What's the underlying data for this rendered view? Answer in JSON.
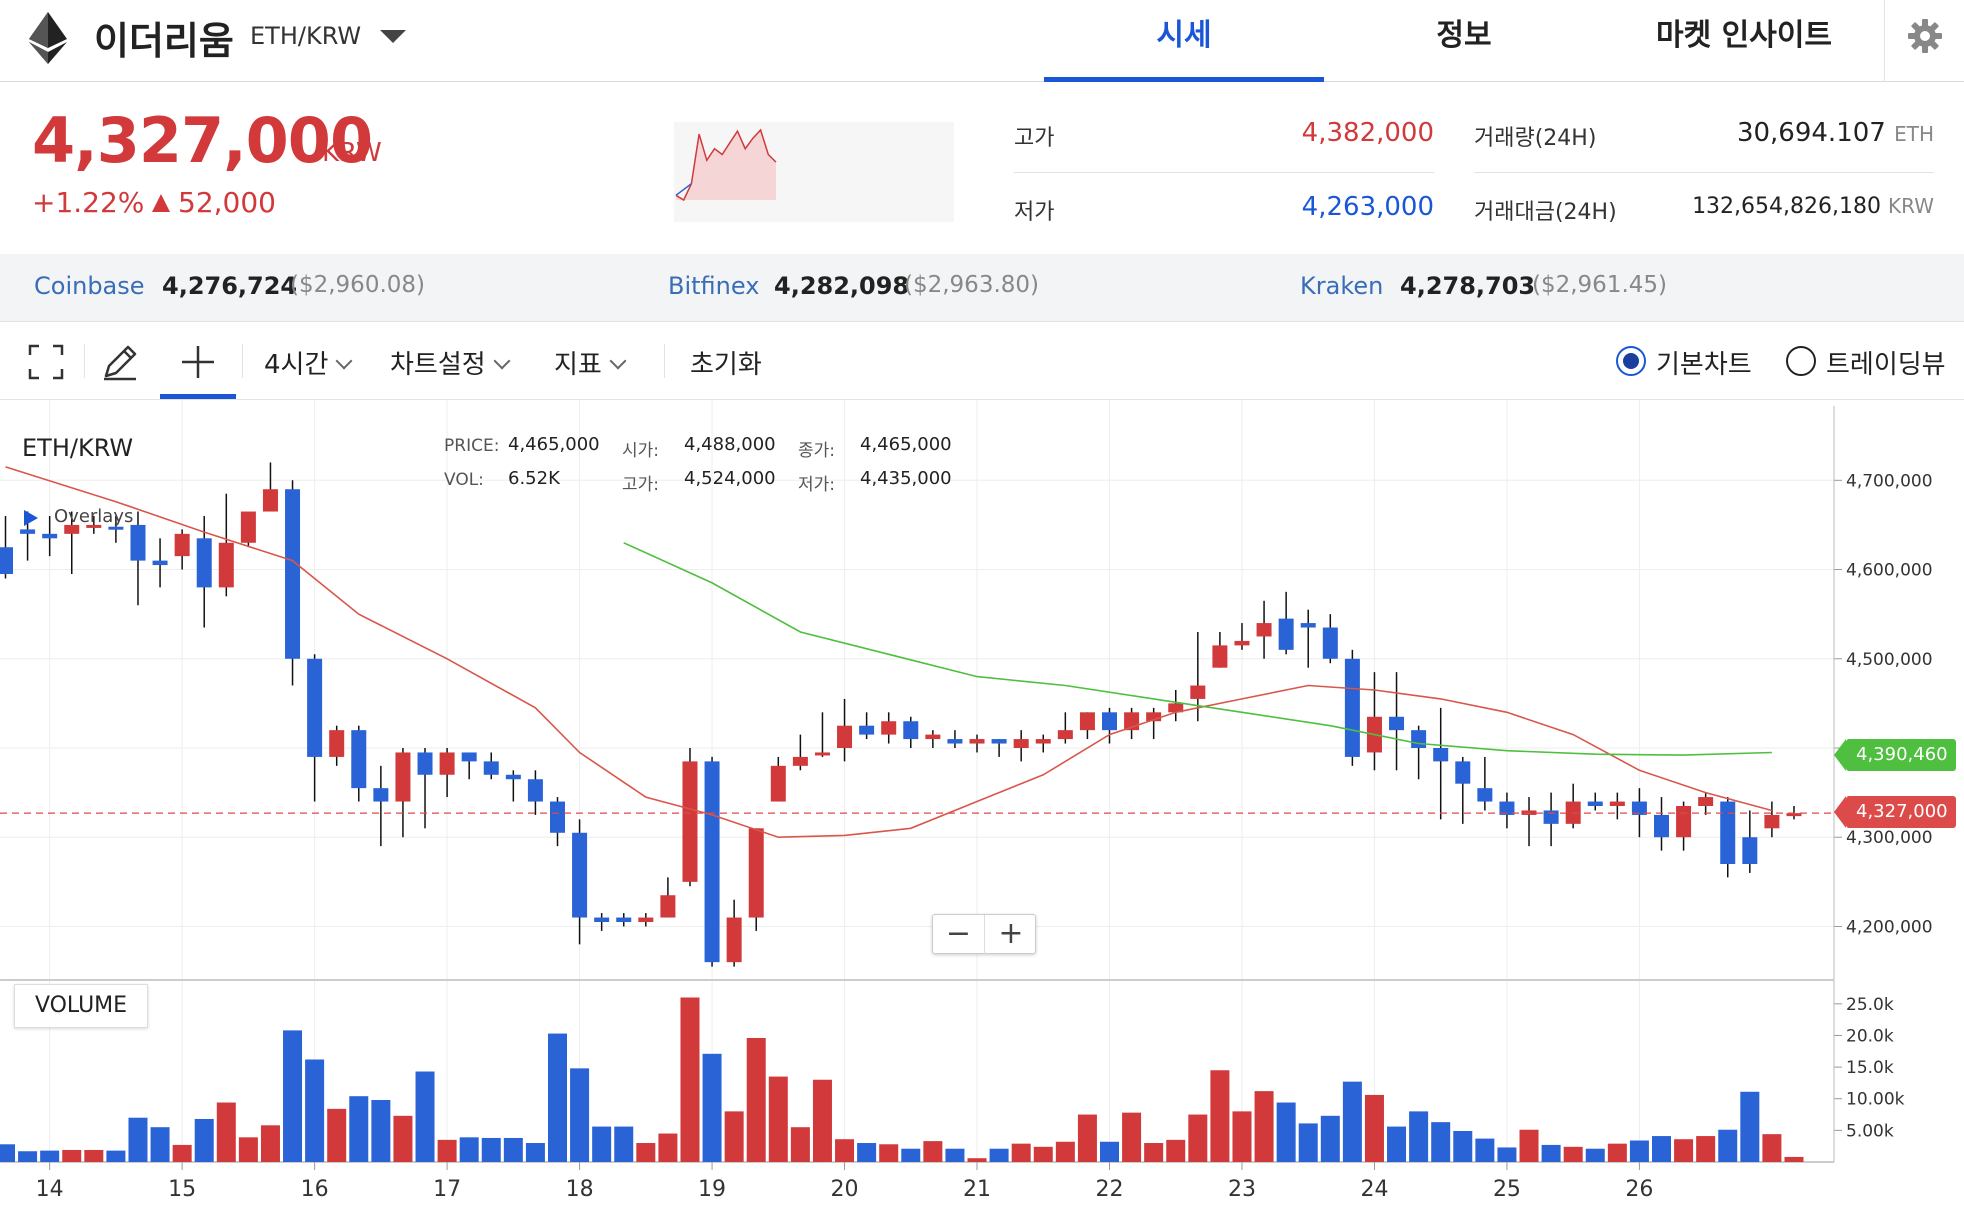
{
  "header": {
    "coin_name": "이더리움",
    "pair": "ETH/KRW",
    "tabs": [
      {
        "label": "시세",
        "active": true
      },
      {
        "label": "정보",
        "active": false
      },
      {
        "label": "마켓 인사이트",
        "active": false
      }
    ],
    "icons": {
      "logo": "ethereum-logo",
      "dropdown": "caret-down-icon",
      "settings": "gear-icon"
    }
  },
  "price": {
    "value": "4,327,000",
    "unit": "KRW",
    "change_pct": "+1.22%",
    "change_amt": "52,000",
    "sparkline": [
      4270,
      4262,
      4290,
      4375,
      4330,
      4350,
      4340,
      4360,
      4380,
      4350,
      4368,
      4382,
      4340,
      4327
    ]
  },
  "stats": {
    "high_label": "고가",
    "high": "4,382,000",
    "low_label": "저가",
    "low": "4,263,000",
    "volume_label": "거래량(24H)",
    "volume": "30,694.107",
    "volume_unit": "ETH",
    "value_label": "거래대금(24H)",
    "value": "132,654,826,180",
    "value_unit": "KRW"
  },
  "exchanges": [
    {
      "name": "Coinbase",
      "price": "4,276,724",
      "usd": "($2,960.08)"
    },
    {
      "name": "Bitfinex",
      "price": "4,282,098",
      "usd": "($2,963.80)"
    },
    {
      "name": "Kraken",
      "price": "4,278,703",
      "usd": "($2,961.45)"
    }
  ],
  "toolbar": {
    "interval": "4시간",
    "chart_settings": "차트설정",
    "indicators": "지표",
    "reset": "초기화",
    "basic_chart": "기본차트",
    "tradingview": "트레이딩뷰",
    "icons": [
      "fullscreen-icon",
      "pencil-icon",
      "crosshair-icon"
    ]
  },
  "chart_info": {
    "pair": "ETH/KRW",
    "price_k": "PRICE:",
    "price": "4,465,000",
    "vol_k": "VOL:",
    "vol": "6.52K",
    "open_k": "시가:",
    "open": "4,488,000",
    "high_k": "고가:",
    "high": "4,524,000",
    "close_k": "종가:",
    "close": "4,465,000",
    "low_k": "저가:",
    "low": "4,435,000",
    "overlays": "Overlays",
    "volume": "VOLUME",
    "zoom_out": "−",
    "zoom_in": "+",
    "tag_ma": "4,390,460",
    "tag_price": "4,327,000",
    "colors": {
      "up": "#d1393b",
      "down": "#2a63d6",
      "ma_short": "#d9574a",
      "ma_long": "#4fbf3f",
      "tag_ma": "#4fbf3f",
      "tag_price": "#dd4a4a"
    }
  },
  "chart_data": {
    "type": "candlestick",
    "interval": "4h",
    "y_ticks": [
      4200000,
      4300000,
      4400000,
      4500000,
      4600000,
      4700000
    ],
    "y_tick_labels": [
      "4,200,000",
      "4,300,000",
      "4,400,000",
      "4,500,000",
      "4,600,000",
      "4,700,000"
    ],
    "ylim": [
      4140000,
      4790000
    ],
    "volume_ticks": [
      "5.00k",
      "10.00k",
      "15.0k",
      "20.0k",
      "25.0k"
    ],
    "volume_tick_values": [
      5000,
      10000,
      15000,
      20000,
      25000
    ],
    "volume_max": 27500,
    "x_tick_labels": [
      "14",
      "15",
      "16",
      "17",
      "18",
      "19",
      "20",
      "21",
      "22",
      "23",
      "24",
      "25",
      "26"
    ],
    "x_tick_index": [
      2,
      8,
      14,
      20,
      26,
      32,
      38,
      44,
      50,
      56,
      62,
      68,
      74
    ],
    "last_price": 4327000,
    "candles": [
      [
        4625000,
        4595000,
        4660000,
        4590000,
        2800
      ],
      [
        4645000,
        4640000,
        4665000,
        4610000,
        1700
      ],
      [
        4640000,
        4635000,
        4660000,
        4615000,
        1800
      ],
      [
        4640000,
        4650000,
        4665000,
        4595000,
        1900
      ],
      [
        4650000,
        4650000,
        4660000,
        4640000,
        1900
      ],
      [
        4648000,
        4645000,
        4660000,
        4630000,
        1800
      ],
      [
        4650000,
        4610000,
        4665000,
        4560000,
        7000
      ],
      [
        4610000,
        4605000,
        4635000,
        4580000,
        5500
      ],
      [
        4615000,
        4640000,
        4645000,
        4600000,
        2700
      ],
      [
        4635000,
        4580000,
        4660000,
        4535000,
        6800
      ],
      [
        4580000,
        4630000,
        4685000,
        4570000,
        9400
      ],
      [
        4630000,
        4665000,
        4660000,
        4625000,
        3900
      ],
      [
        4665000,
        4690000,
        4720000,
        4670000,
        5800
      ],
      [
        4690000,
        4500000,
        4700000,
        4470000,
        20800
      ],
      [
        4500000,
        4390000,
        4505000,
        4340000,
        16200
      ],
      [
        4390000,
        4420000,
        4425000,
        4380000,
        8400
      ],
      [
        4420000,
        4355000,
        4425000,
        4340000,
        10400
      ],
      [
        4355000,
        4340000,
        4380000,
        4290000,
        9800
      ],
      [
        4340000,
        4395000,
        4400000,
        4300000,
        7300
      ],
      [
        4395000,
        4370000,
        4400000,
        4310000,
        14300
      ],
      [
        4370000,
        4395000,
        4400000,
        4345000,
        3500
      ],
      [
        4395000,
        4385000,
        4395000,
        4365000,
        3900
      ],
      [
        4385000,
        4370000,
        4395000,
        4365000,
        3800
      ],
      [
        4370000,
        4365000,
        4375000,
        4340000,
        3800
      ],
      [
        4365000,
        4340000,
        4375000,
        4325000,
        3000
      ],
      [
        4340000,
        4305000,
        4345000,
        4290000,
        20300
      ],
      [
        4305000,
        4210000,
        4320000,
        4180000,
        14800
      ],
      [
        4210000,
        4205000,
        4215000,
        4195000,
        5600
      ],
      [
        4210000,
        4205000,
        4215000,
        4200000,
        5600
      ],
      [
        4205000,
        4210000,
        4215000,
        4200000,
        3000
      ],
      [
        4210000,
        4235000,
        4255000,
        4210000,
        4500
      ],
      [
        4250000,
        4385000,
        4400000,
        4245000,
        26000
      ],
      [
        4385000,
        4160000,
        4390000,
        4155000,
        17100
      ],
      [
        4160000,
        4210000,
        4230000,
        4155000,
        8000
      ],
      [
        4210000,
        4310000,
        4310000,
        4195000,
        19600
      ],
      [
        4340000,
        4380000,
        4390000,
        4340000,
        13500
      ],
      [
        4380000,
        4390000,
        4415000,
        4375000,
        5500
      ],
      [
        4395000,
        4395000,
        4440000,
        4390000,
        13000
      ],
      [
        4400000,
        4425000,
        4455000,
        4385000,
        3600
      ],
      [
        4425000,
        4415000,
        4440000,
        4410000,
        3000
      ],
      [
        4415000,
        4430000,
        4440000,
        4405000,
        2800
      ],
      [
        4430000,
        4410000,
        4435000,
        4400000,
        2100
      ],
      [
        4410000,
        4415000,
        4420000,
        4400000,
        3300
      ],
      [
        4410000,
        4405000,
        4420000,
        4400000,
        2100
      ],
      [
        4405000,
        4410000,
        4415000,
        4395000,
        600
      ],
      [
        4410000,
        4405000,
        4410000,
        4390000,
        2100
      ],
      [
        4400000,
        4410000,
        4420000,
        4385000,
        2900
      ],
      [
        4405000,
        4410000,
        4415000,
        4395000,
        2400
      ],
      [
        4410000,
        4420000,
        4440000,
        4405000,
        3200
      ],
      [
        4420000,
        4440000,
        4440000,
        4410000,
        7500
      ],
      [
        4440000,
        4420000,
        4445000,
        4405000,
        3200
      ],
      [
        4420000,
        4440000,
        4445000,
        4410000,
        7800
      ],
      [
        4430000,
        4440000,
        4445000,
        4410000,
        3000
      ],
      [
        4440000,
        4450000,
        4465000,
        4430000,
        3500
      ],
      [
        4455000,
        4470000,
        4530000,
        4430000,
        7500
      ],
      [
        4490000,
        4515000,
        4530000,
        4490000,
        14500
      ],
      [
        4515000,
        4520000,
        4540000,
        4510000,
        8000
      ],
      [
        4525000,
        4540000,
        4565000,
        4500000,
        11200
      ],
      [
        4545000,
        4510000,
        4575000,
        4505000,
        9400
      ],
      [
        4540000,
        4535000,
        4555000,
        4490000,
        6100
      ],
      [
        4535000,
        4500000,
        4550000,
        4495000,
        7300
      ],
      [
        4500000,
        4390000,
        4510000,
        4380000,
        12700
      ],
      [
        4395000,
        4435000,
        4485000,
        4375000,
        10600
      ],
      [
        4435000,
        4420000,
        4485000,
        4375000,
        5600
      ],
      [
        4420000,
        4400000,
        4425000,
        4365000,
        8000
      ],
      [
        4400000,
        4385000,
        4445000,
        4320000,
        6300
      ],
      [
        4385000,
        4360000,
        4390000,
        4315000,
        4900
      ],
      [
        4355000,
        4340000,
        4390000,
        4330000,
        3700
      ],
      [
        4340000,
        4325000,
        4350000,
        4310000,
        2300
      ],
      [
        4325000,
        4330000,
        4345000,
        4290000,
        5100
      ],
      [
        4330000,
        4315000,
        4350000,
        4290000,
        2700
      ],
      [
        4315000,
        4340000,
        4360000,
        4310000,
        2400
      ],
      [
        4340000,
        4335000,
        4350000,
        4330000,
        2100
      ],
      [
        4335000,
        4340000,
        4350000,
        4320000,
        2900
      ],
      [
        4340000,
        4325000,
        4355000,
        4300000,
        3400
      ],
      [
        4325000,
        4300000,
        4345000,
        4285000,
        4100
      ],
      [
        4300000,
        4335000,
        4340000,
        4285000,
        3600
      ],
      [
        4335000,
        4345000,
        4350000,
        4325000,
        4100
      ],
      [
        4340000,
        4270000,
        4345000,
        4255000,
        5100
      ],
      [
        4300000,
        4270000,
        4330000,
        4260000,
        11100
      ],
      [
        4310000,
        4325000,
        4340000,
        4300000,
        4400
      ],
      [
        4325000,
        4327000,
        4335000,
        4320000,
        800
      ]
    ],
    "ma_short": [
      [
        0,
        4715000
      ],
      [
        5,
        4676000
      ],
      [
        9,
        4642000
      ],
      [
        13,
        4610000
      ],
      [
        16,
        4550000
      ],
      [
        20,
        4500000
      ],
      [
        24,
        4445000
      ],
      [
        26,
        4395000
      ],
      [
        29,
        4345000
      ],
      [
        32,
        4325000
      ],
      [
        35,
        4300000
      ],
      [
        38,
        4302000
      ],
      [
        41,
        4310000
      ],
      [
        44,
        4340000
      ],
      [
        47,
        4370000
      ],
      [
        50,
        4415000
      ],
      [
        53,
        4440000
      ],
      [
        56,
        4455000
      ],
      [
        59,
        4470000
      ],
      [
        62,
        4465000
      ],
      [
        65,
        4455000
      ],
      [
        68,
        4440000
      ],
      [
        71,
        4415000
      ],
      [
        74,
        4375000
      ],
      [
        77,
        4350000
      ],
      [
        80,
        4330000
      ]
    ],
    "ma_long": [
      [
        28,
        4630000
      ],
      [
        32,
        4585000
      ],
      [
        36,
        4530000
      ],
      [
        40,
        4505000
      ],
      [
        44,
        4480000
      ],
      [
        48,
        4470000
      ],
      [
        52,
        4455000
      ],
      [
        56,
        4440000
      ],
      [
        60,
        4425000
      ],
      [
        64,
        4405000
      ],
      [
        68,
        4397000
      ],
      [
        72,
        4393000
      ],
      [
        76,
        4392000
      ],
      [
        80,
        4395000
      ]
    ]
  }
}
